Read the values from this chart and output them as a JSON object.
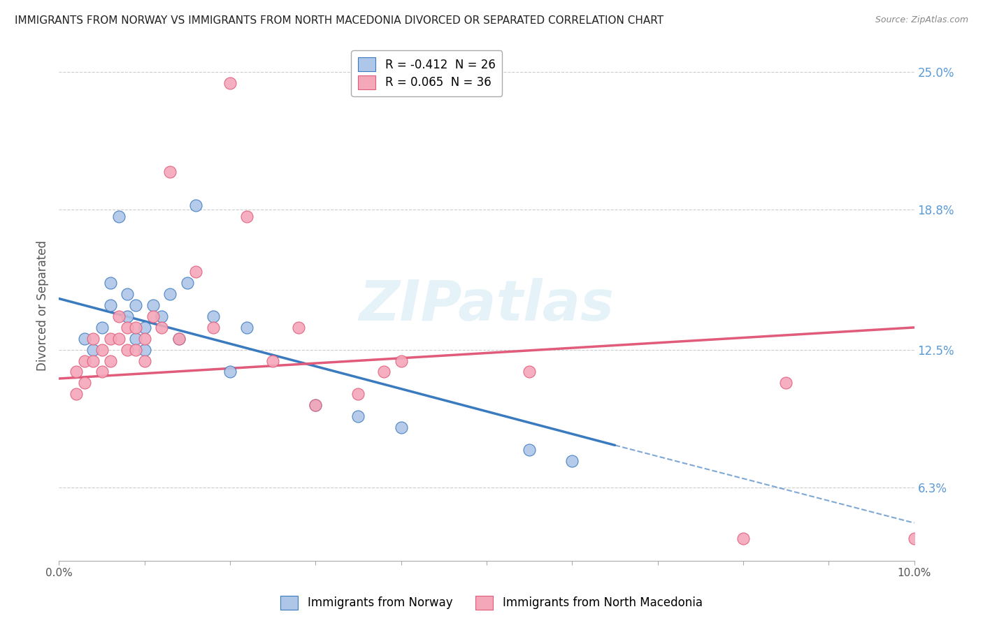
{
  "title": "IMMIGRANTS FROM NORWAY VS IMMIGRANTS FROM NORTH MACEDONIA DIVORCED OR SEPARATED CORRELATION CHART",
  "source": "Source: ZipAtlas.com",
  "ylabel": "Divorced or Separated",
  "legend_label_1": "Immigrants from Norway",
  "legend_label_2": "Immigrants from North Macedonia",
  "R1": -0.412,
  "N1": 26,
  "R2": 0.065,
  "N2": 36,
  "color1": "#aec6e8",
  "color2": "#f4a7b9",
  "trendline1_color": "#3a7abf",
  "trendline2_color": "#e05c7a",
  "xlim": [
    0.0,
    0.1
  ],
  "ylim": [
    0.03,
    0.26
  ],
  "yticks": [
    0.063,
    0.125,
    0.188,
    0.25
  ],
  "ytick_labels_right": [
    "6.3%",
    "12.5%",
    "18.8%",
    "25.0%"
  ],
  "background_color": "#ffffff",
  "watermark_text": "ZIPatlas",
  "norway_x": [
    0.003,
    0.004,
    0.005,
    0.006,
    0.006,
    0.007,
    0.008,
    0.008,
    0.009,
    0.009,
    0.01,
    0.01,
    0.011,
    0.012,
    0.013,
    0.014,
    0.015,
    0.016,
    0.018,
    0.02,
    0.022,
    0.03,
    0.035,
    0.04,
    0.055,
    0.06
  ],
  "norway_y": [
    0.13,
    0.125,
    0.135,
    0.155,
    0.145,
    0.185,
    0.15,
    0.14,
    0.145,
    0.13,
    0.135,
    0.125,
    0.145,
    0.14,
    0.15,
    0.13,
    0.155,
    0.19,
    0.14,
    0.115,
    0.135,
    0.1,
    0.095,
    0.09,
    0.08,
    0.075
  ],
  "mace_x": [
    0.002,
    0.002,
    0.003,
    0.003,
    0.004,
    0.004,
    0.005,
    0.005,
    0.006,
    0.006,
    0.007,
    0.007,
    0.008,
    0.008,
    0.009,
    0.009,
    0.01,
    0.01,
    0.011,
    0.012,
    0.013,
    0.014,
    0.016,
    0.018,
    0.02,
    0.022,
    0.025,
    0.028,
    0.03,
    0.035,
    0.038,
    0.04,
    0.055,
    0.08,
    0.085,
    0.1
  ],
  "mace_y": [
    0.115,
    0.105,
    0.12,
    0.11,
    0.13,
    0.12,
    0.125,
    0.115,
    0.13,
    0.12,
    0.14,
    0.13,
    0.135,
    0.125,
    0.135,
    0.125,
    0.13,
    0.12,
    0.14,
    0.135,
    0.205,
    0.13,
    0.16,
    0.135,
    0.245,
    0.185,
    0.12,
    0.135,
    0.1,
    0.105,
    0.115,
    0.12,
    0.115,
    0.04,
    0.11,
    0.04
  ],
  "trendline1_x0": 0.0,
  "trendline1_y0": 0.148,
  "trendline1_x1": 0.065,
  "trendline1_y1": 0.082,
  "trendline1_xend": 0.1,
  "trendline1_yend": 0.047,
  "trendline2_x0": 0.0,
  "trendline2_y0": 0.112,
  "trendline2_x1": 0.1,
  "trendline2_y1": 0.135
}
